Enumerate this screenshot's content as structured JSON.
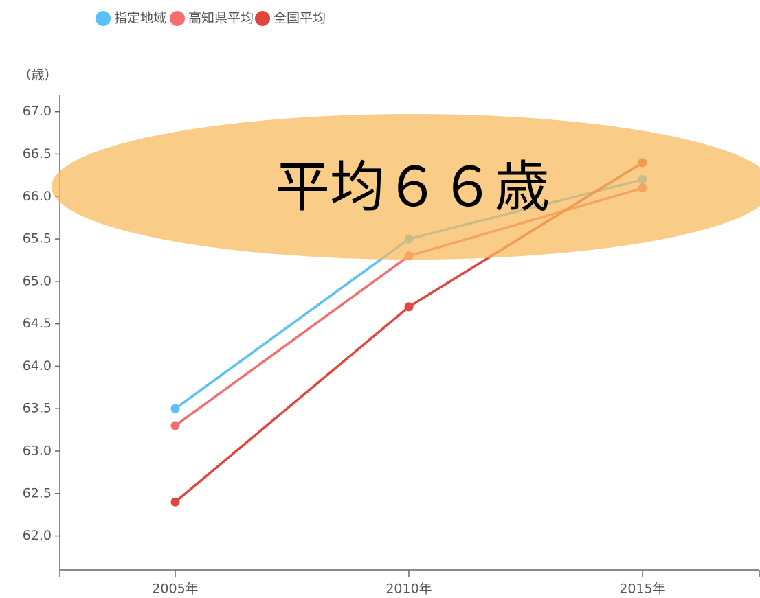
{
  "chart_data": {
    "type": "line",
    "y_label": "（歳）",
    "annotation": "平均６６歳",
    "categories": [
      "2005年",
      "2010年",
      "2015年"
    ],
    "series": [
      {
        "name": "指定地域",
        "color": "#5bc0f8",
        "values": [
          63.5,
          65.5,
          66.2
        ]
      },
      {
        "name": "高知県平均",
        "color": "#f36f6f",
        "values": [
          63.3,
          65.3,
          66.1
        ]
      },
      {
        "name": "全国平均",
        "color": "#e0463c",
        "values": [
          62.4,
          64.7,
          66.4
        ]
      }
    ],
    "ylim": [
      61.6,
      67.2
    ],
    "yticks": [
      {
        "value": 62,
        "label": "62.0"
      },
      62.5,
      {
        "value": 63,
        "label": "63.0"
      },
      63.5,
      {
        "value": 64,
        "label": "64.0"
      },
      64.5,
      {
        "value": 65,
        "label": "65.0"
      },
      65.5,
      {
        "value": 66,
        "label": "66.0"
      },
      66.5,
      {
        "value": 67,
        "label": "67.0"
      }
    ],
    "legend": "top-left",
    "grid": false
  }
}
